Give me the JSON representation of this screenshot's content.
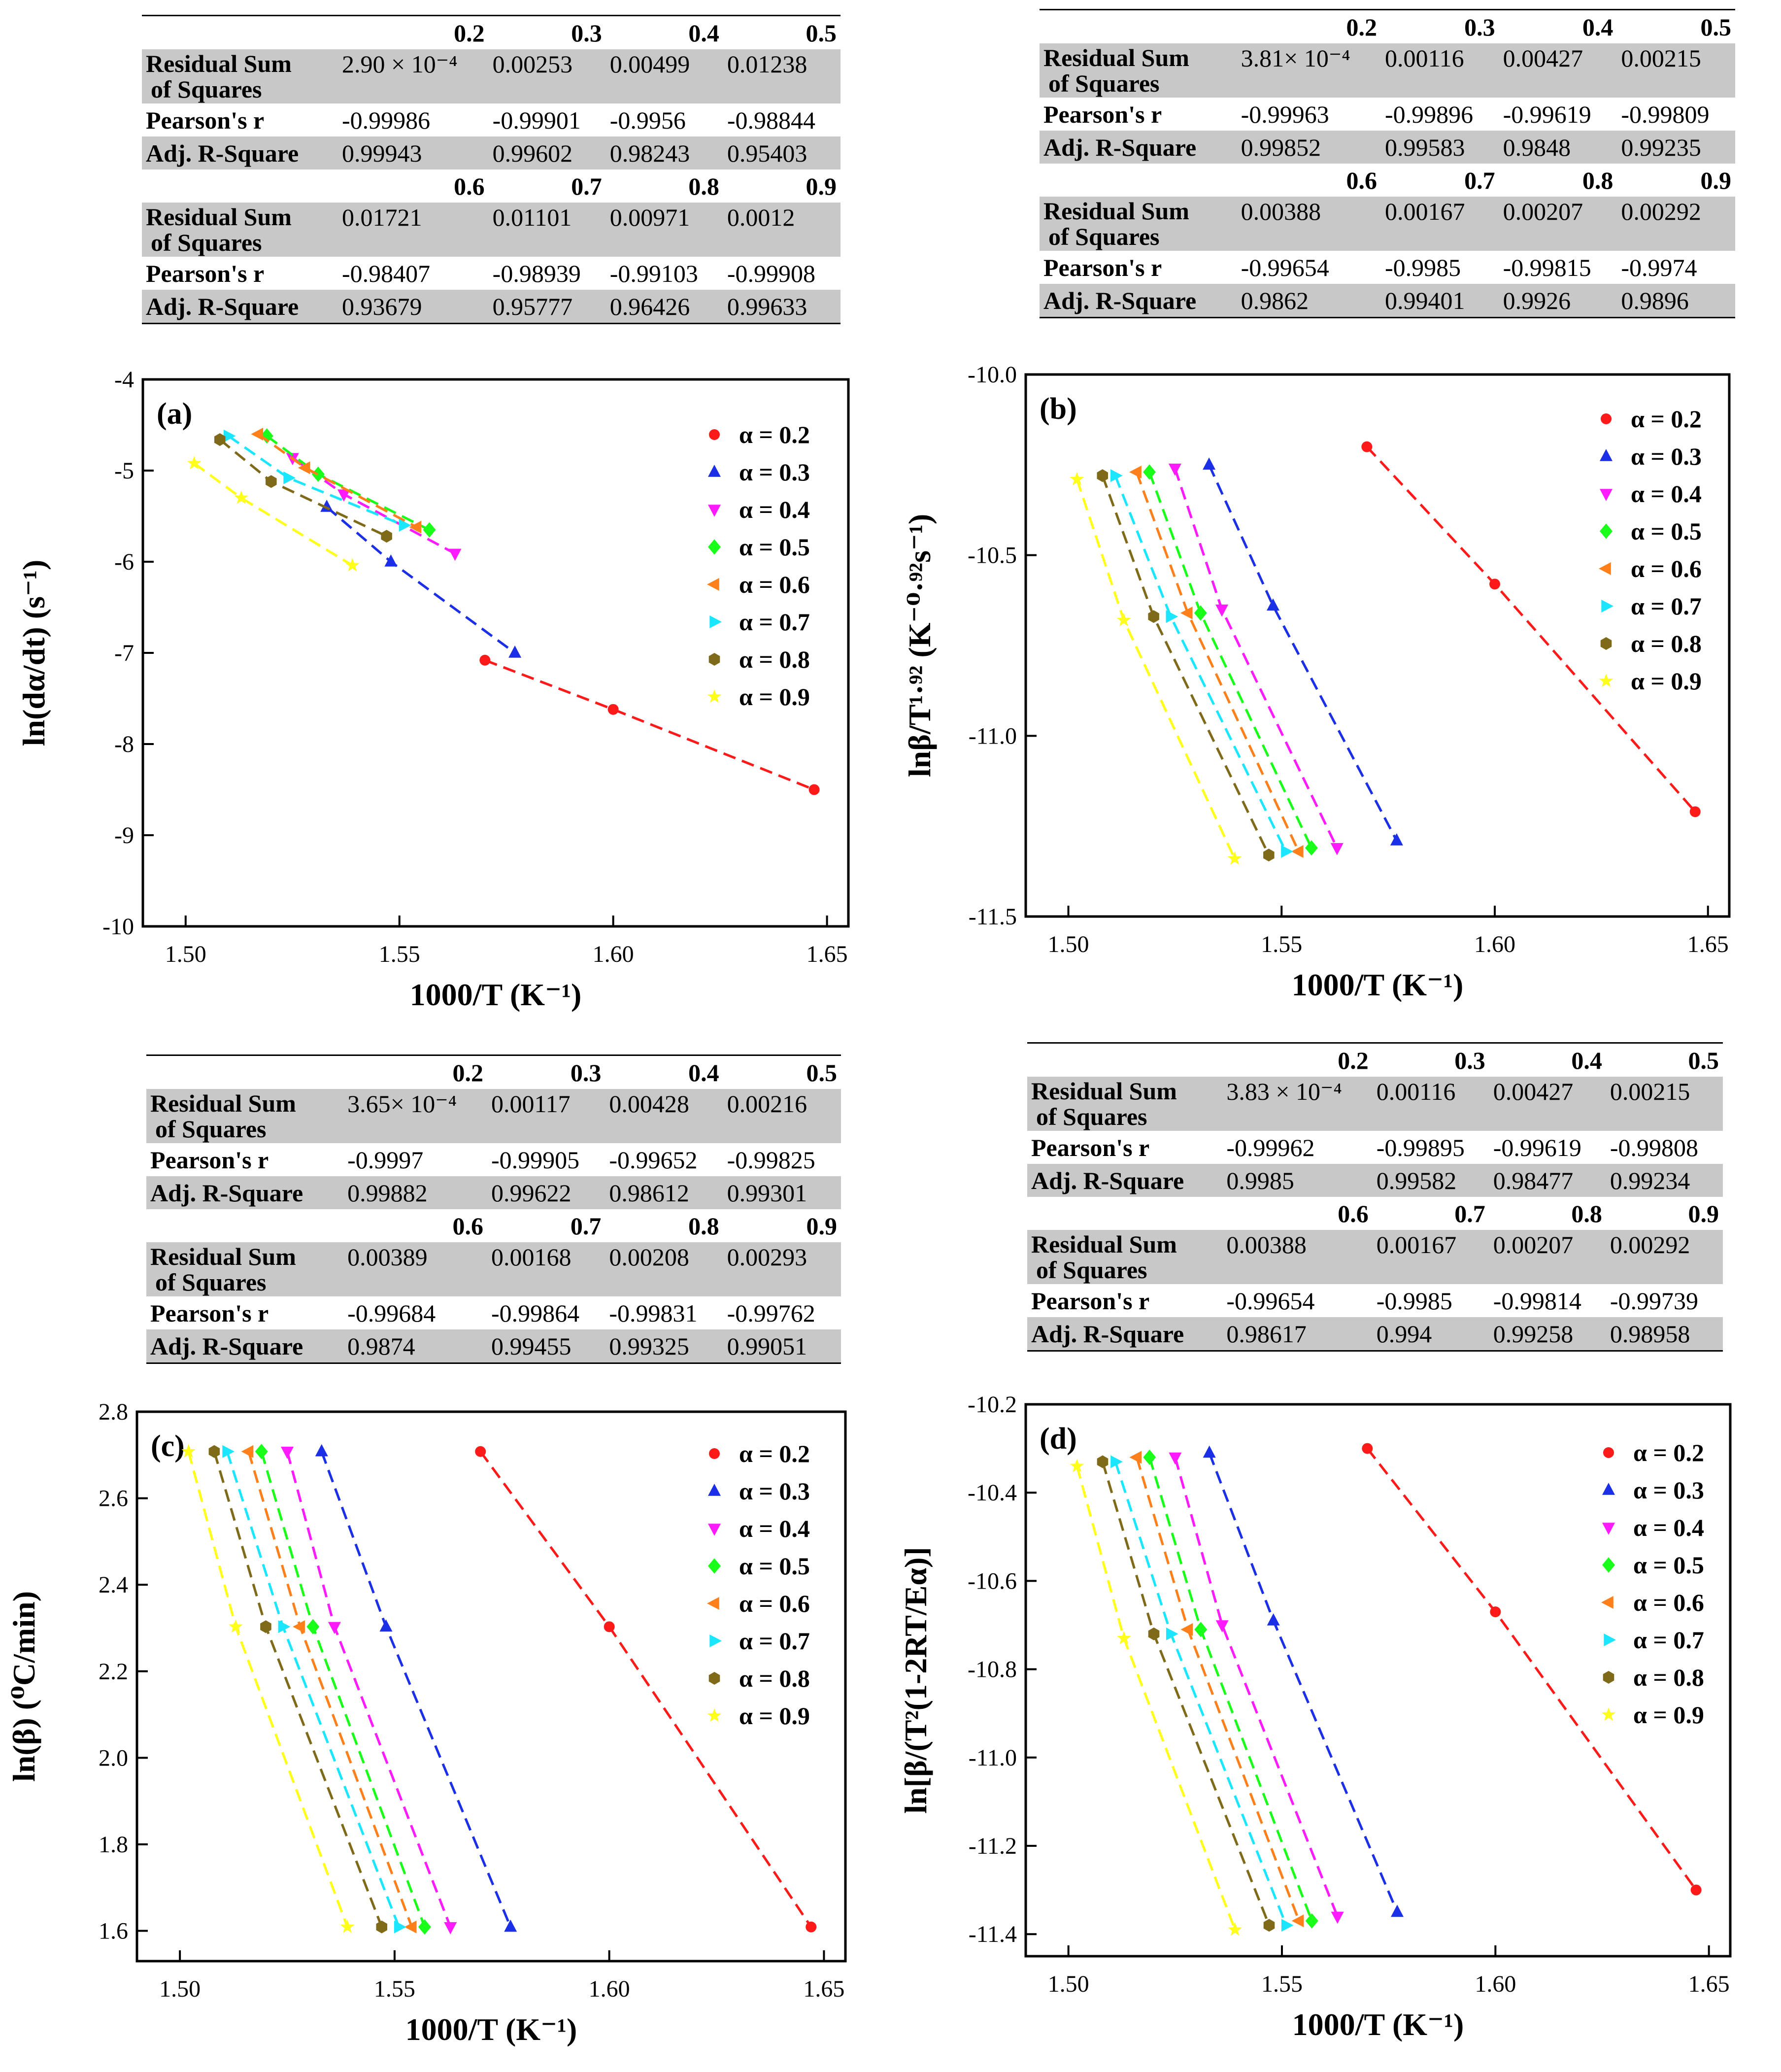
{
  "series_colors": [
    "#ff1a1a",
    "#1a2fe6",
    "#ff1aff",
    "#1aff1a",
    "#ff7f1a",
    "#1ae6ff",
    "#7f6a1a",
    "#ffff1a"
  ],
  "series_markers": [
    "circle",
    "tri-up",
    "tri-down",
    "diamond",
    "tri-left",
    "tri-right",
    "hexagon",
    "star"
  ],
  "tables": [
    {
      "panel": "a",
      "blocks": [
        {
          "cols": [
            "0.2",
            "0.3",
            "0.4",
            "0.5"
          ],
          "rows": [
            {
              "label": "Residual Sum",
              "label2": "of Squares",
              "values": [
                "2.90 × 10⁻⁴",
                "0.00253",
                "0.00499",
                "0.01238"
              ]
            },
            {
              "label": "Pearson's r",
              "values": [
                "-0.99986",
                "-0.99901",
                "-0.9956",
                "-0.98844"
              ]
            },
            {
              "label": "Adj. R-Square",
              "values": [
                "0.99943",
                "0.99602",
                "0.98243",
                "0.95403"
              ]
            }
          ]
        },
        {
          "cols": [
            "0.6",
            "0.7",
            "0.8",
            "0.9"
          ],
          "rows": [
            {
              "label": "Residual Sum",
              "label2": "of Squares",
              "values": [
                "0.01721",
                "0.01101",
                "0.00971",
                "0.0012"
              ]
            },
            {
              "label": "Pearson's r",
              "values": [
                "-0.98407",
                "-0.98939",
                "-0.99103",
                "-0.99908"
              ]
            },
            {
              "label": "Adj. R-Square",
              "values": [
                "0.93679",
                "0.95777",
                "0.96426",
                "0.99633"
              ]
            }
          ]
        }
      ]
    },
    {
      "panel": "b",
      "blocks": [
        {
          "cols": [
            "0.2",
            "0.3",
            "0.4",
            "0.5"
          ],
          "rows": [
            {
              "label": "Residual Sum",
              "label2": "of Squares",
              "values": [
                "3.81× 10⁻⁴",
                "0.00116",
                "0.00427",
                "0.00215"
              ]
            },
            {
              "label": "Pearson's r",
              "values": [
                "-0.99963",
                "-0.99896",
                "-0.99619",
                "-0.99809"
              ]
            },
            {
              "label": "Adj. R-Square",
              "values": [
                "0.99852",
                "0.99583",
                "0.9848",
                "0.99235"
              ]
            }
          ]
        },
        {
          "cols": [
            "0.6",
            "0.7",
            "0.8",
            "0.9"
          ],
          "rows": [
            {
              "label": "Residual Sum",
              "label2": "of Squares",
              "values": [
                "0.00388",
                "0.00167",
                "0.00207",
                "0.00292"
              ]
            },
            {
              "label": "Pearson's r",
              "values": [
                "-0.99654",
                "-0.9985",
                "-0.99815",
                "-0.9974"
              ]
            },
            {
              "label": "Adj. R-Square",
              "values": [
                "0.9862",
                "0.99401",
                "0.9926",
                "0.9896"
              ]
            }
          ]
        }
      ]
    },
    {
      "panel": "c",
      "blocks": [
        {
          "cols": [
            "0.2",
            "0.3",
            "0.4",
            "0.5"
          ],
          "rows": [
            {
              "label": "Residual Sum",
              "label2": "of Squares",
              "values": [
                "3.65× 10⁻⁴",
                "0.00117",
                "0.00428",
                "0.00216"
              ]
            },
            {
              "label": "Pearson's r",
              "values": [
                "-0.9997",
                "-0.99905",
                "-0.99652",
                "-0.99825"
              ]
            },
            {
              "label": "Adj. R-Square",
              "values": [
                "0.99882",
                "0.99622",
                "0.98612",
                "0.99301"
              ]
            }
          ]
        },
        {
          "cols": [
            "0.6",
            "0.7",
            "0.8",
            "0.9"
          ],
          "rows": [
            {
              "label": "Residual Sum",
              "label2": "of Squares",
              "values": [
                "0.00389",
                "0.00168",
                "0.00208",
                "0.00293"
              ]
            },
            {
              "label": "Pearson's r",
              "values": [
                "-0.99684",
                "-0.99864",
                "-0.99831",
                "-0.99762"
              ]
            },
            {
              "label": "Adj. R-Square",
              "values": [
                "0.9874",
                "0.99455",
                "0.99325",
                "0.99051"
              ]
            }
          ]
        }
      ]
    },
    {
      "panel": "d",
      "blocks": [
        {
          "cols": [
            "0.2",
            "0.3",
            "0.4",
            "0.5"
          ],
          "rows": [
            {
              "label": "Residual Sum",
              "label2": "of Squares",
              "values": [
                "3.83 × 10⁻⁴",
                "0.00116",
                "0.00427",
                "0.00215"
              ]
            },
            {
              "label": "Pearson's r",
              "values": [
                "-0.99962",
                "-0.99895",
                "-0.99619",
                "-0.99808"
              ]
            },
            {
              "label": "Adj. R-Square",
              "values": [
                "0.9985",
                "0.99582",
                "0.98477",
                "0.99234"
              ]
            }
          ]
        },
        {
          "cols": [
            "0.6",
            "0.7",
            "0.8",
            "0.9"
          ],
          "rows": [
            {
              "label": "Residual Sum",
              "label2": "of Squares",
              "values": [
                "0.00388",
                "0.00167",
                "0.00207",
                "0.00292"
              ]
            },
            {
              "label": "Pearson's r",
              "values": [
                "-0.99654",
                "-0.9985",
                "-0.99814",
                "-0.99739"
              ]
            },
            {
              "label": "Adj. R-Square",
              "values": [
                "0.98617",
                "0.994",
                "0.99258",
                "0.98958"
              ]
            }
          ]
        }
      ]
    }
  ],
  "chart_data": [
    {
      "type": "scatter",
      "panel_label": "(a)",
      "xlabel": "1000/T (K⁻¹)",
      "ylabel": "ln(dα/dt) (s⁻¹)",
      "xlim": [
        1.49,
        1.655
      ],
      "ylim": [
        -10,
        -4
      ],
      "xticks": [
        "1.50",
        "1.55",
        "1.60",
        "1.65"
      ],
      "xtick_values": [
        1.5,
        1.55,
        1.6,
        1.65
      ],
      "yticks": [
        "-4",
        "-5",
        "-6",
        "-7",
        "-8",
        "-9",
        "-10"
      ],
      "ytick_values": [
        -4,
        -5,
        -6,
        -7,
        -8,
        -9,
        -10
      ],
      "legend_position": "top-right",
      "series": [
        {
          "name": "α = 0.2",
          "x": [
            1.57,
            1.6,
            1.647
          ],
          "y": [
            -7.08,
            -7.62,
            -8.5
          ]
        },
        {
          "name": "α = 0.3",
          "x": [
            1.533,
            1.548,
            1.577
          ],
          "y": [
            -5.4,
            -6.0,
            -7.0
          ]
        },
        {
          "name": "α = 0.4",
          "x": [
            1.525,
            1.537,
            1.563
          ],
          "y": [
            -4.86,
            -5.26,
            -5.91
          ]
        },
        {
          "name": "α = 0.5",
          "x": [
            1.519,
            1.531,
            1.557
          ],
          "y": [
            -4.62,
            -5.04,
            -5.65
          ]
        },
        {
          "name": "α = 0.6",
          "x": [
            1.517,
            1.528,
            1.554
          ],
          "y": [
            -4.6,
            -4.97,
            -5.62
          ]
        },
        {
          "name": "α = 0.7",
          "x": [
            1.51,
            1.524,
            1.551
          ],
          "y": [
            -4.62,
            -5.08,
            -5.6
          ]
        },
        {
          "name": "α = 0.8",
          "x": [
            1.508,
            1.52,
            1.547
          ],
          "y": [
            -4.66,
            -5.12,
            -5.72
          ]
        },
        {
          "name": "α = 0.9",
          "x": [
            1.502,
            1.513,
            1.539
          ],
          "y": [
            -4.92,
            -5.3,
            -6.04
          ]
        }
      ]
    },
    {
      "type": "scatter",
      "panel_label": "(b)",
      "xlabel": "1000/T (K⁻¹)",
      "ylabel": "lnβ/T¹·⁹² (K⁻⁰·⁹²s⁻¹)",
      "xlim": [
        1.49,
        1.655
      ],
      "ylim": [
        -11.5,
        -10.0
      ],
      "xticks": [
        "1.50",
        "1.55",
        "1.60",
        "1.65"
      ],
      "xtick_values": [
        1.5,
        1.55,
        1.6,
        1.65
      ],
      "yticks": [
        "-10.0",
        "-10.5",
        "-11.0",
        "-11.5"
      ],
      "ytick_values": [
        -10.0,
        -10.5,
        -11.0,
        -11.5
      ],
      "legend_position": "top-right",
      "series": [
        {
          "name": "α = 0.2",
          "x": [
            1.57,
            1.6,
            1.647
          ],
          "y": [
            -10.2,
            -10.58,
            -11.21
          ]
        },
        {
          "name": "α = 0.3",
          "x": [
            1.533,
            1.548,
            1.577
          ],
          "y": [
            -10.25,
            -10.64,
            -11.29
          ]
        },
        {
          "name": "α = 0.4",
          "x": [
            1.525,
            1.536,
            1.563
          ],
          "y": [
            -10.26,
            -10.65,
            -11.31
          ]
        },
        {
          "name": "α = 0.5",
          "x": [
            1.519,
            1.531,
            1.557
          ],
          "y": [
            -10.27,
            -10.66,
            -11.31
          ]
        },
        {
          "name": "α = 0.6",
          "x": [
            1.516,
            1.528,
            1.554
          ],
          "y": [
            -10.27,
            -10.66,
            -11.32
          ]
        },
        {
          "name": "α = 0.7",
          "x": [
            1.511,
            1.524,
            1.551
          ],
          "y": [
            -10.28,
            -10.67,
            -11.32
          ]
        },
        {
          "name": "α = 0.8",
          "x": [
            1.508,
            1.52,
            1.547
          ],
          "y": [
            -10.28,
            -10.67,
            -11.33
          ]
        },
        {
          "name": "α = 0.9",
          "x": [
            1.502,
            1.513,
            1.539
          ],
          "y": [
            -10.29,
            -10.68,
            -11.34
          ]
        }
      ]
    },
    {
      "type": "scatter",
      "panel_label": "(c)",
      "xlabel": "1000/T (K⁻¹)",
      "ylabel": "ln(β) (⁰C/min)",
      "xlim": [
        1.49,
        1.655
      ],
      "ylim": [
        1.53,
        2.8
      ],
      "xticks": [
        "1.50",
        "1.55",
        "1.60",
        "1.65"
      ],
      "xtick_values": [
        1.5,
        1.55,
        1.6,
        1.65
      ],
      "yticks": [
        "1.6",
        "1.8",
        "2.0",
        "2.2",
        "2.4",
        "2.6",
        "2.8"
      ],
      "ytick_values": [
        1.6,
        1.8,
        2.0,
        2.2,
        2.4,
        2.6,
        2.8
      ],
      "legend_position": "top-right",
      "series": [
        {
          "name": "α = 0.2",
          "x": [
            1.57,
            1.6,
            1.647
          ],
          "y": [
            2.708,
            2.303,
            1.609
          ]
        },
        {
          "name": "α = 0.3",
          "x": [
            1.533,
            1.548,
            1.577
          ],
          "y": [
            2.708,
            2.303,
            1.609
          ]
        },
        {
          "name": "α = 0.4",
          "x": [
            1.525,
            1.536,
            1.563
          ],
          "y": [
            2.708,
            2.303,
            1.609
          ]
        },
        {
          "name": "α = 0.5",
          "x": [
            1.519,
            1.531,
            1.557
          ],
          "y": [
            2.708,
            2.303,
            1.609
          ]
        },
        {
          "name": "α = 0.6",
          "x": [
            1.516,
            1.528,
            1.554
          ],
          "y": [
            2.708,
            2.303,
            1.609
          ]
        },
        {
          "name": "α = 0.7",
          "x": [
            1.511,
            1.524,
            1.551
          ],
          "y": [
            2.708,
            2.303,
            1.609
          ]
        },
        {
          "name": "α = 0.8",
          "x": [
            1.508,
            1.52,
            1.547
          ],
          "y": [
            2.708,
            2.303,
            1.609
          ]
        },
        {
          "name": "α = 0.9",
          "x": [
            1.502,
            1.513,
            1.539
          ],
          "y": [
            2.708,
            2.303,
            1.609
          ]
        }
      ]
    },
    {
      "type": "scatter",
      "panel_label": "(d)",
      "xlabel": "1000/T (K⁻¹)",
      "ylabel": "ln[β/(T²(1-2RT/Eα)]",
      "xlim": [
        1.49,
        1.655
      ],
      "ylim": [
        -11.45,
        -10.2
      ],
      "xticks": [
        "1.50",
        "1.55",
        "1.60",
        "1.65"
      ],
      "xtick_values": [
        1.5,
        1.55,
        1.6,
        1.65
      ],
      "yticks": [
        "-10.2",
        "-10.4",
        "-10.6",
        "-10.8",
        "-11.0",
        "-11.2",
        "-11.4"
      ],
      "ytick_values": [
        -10.2,
        -10.4,
        -10.6,
        -10.8,
        -11.0,
        -11.2,
        -11.4
      ],
      "legend_position": "top-right",
      "series": [
        {
          "name": "α = 0.2",
          "x": [
            1.57,
            1.6,
            1.647
          ],
          "y": [
            -10.3,
            -10.67,
            -11.3
          ]
        },
        {
          "name": "α = 0.3",
          "x": [
            1.533,
            1.548,
            1.577
          ],
          "y": [
            -10.31,
            -10.69,
            -11.35
          ]
        },
        {
          "name": "α = 0.4",
          "x": [
            1.525,
            1.536,
            1.563
          ],
          "y": [
            -10.32,
            -10.7,
            -11.36
          ]
        },
        {
          "name": "α = 0.5",
          "x": [
            1.519,
            1.531,
            1.557
          ],
          "y": [
            -10.32,
            -10.71,
            -11.37
          ]
        },
        {
          "name": "α = 0.6",
          "x": [
            1.516,
            1.528,
            1.554
          ],
          "y": [
            -10.32,
            -10.71,
            -11.37
          ]
        },
        {
          "name": "α = 0.7",
          "x": [
            1.511,
            1.524,
            1.551
          ],
          "y": [
            -10.33,
            -10.72,
            -11.38
          ]
        },
        {
          "name": "α = 0.8",
          "x": [
            1.508,
            1.52,
            1.547
          ],
          "y": [
            -10.33,
            -10.72,
            -11.38
          ]
        },
        {
          "name": "α = 0.9",
          "x": [
            1.502,
            1.513,
            1.539
          ],
          "y": [
            -10.34,
            -10.73,
            -11.39
          ]
        }
      ]
    }
  ]
}
